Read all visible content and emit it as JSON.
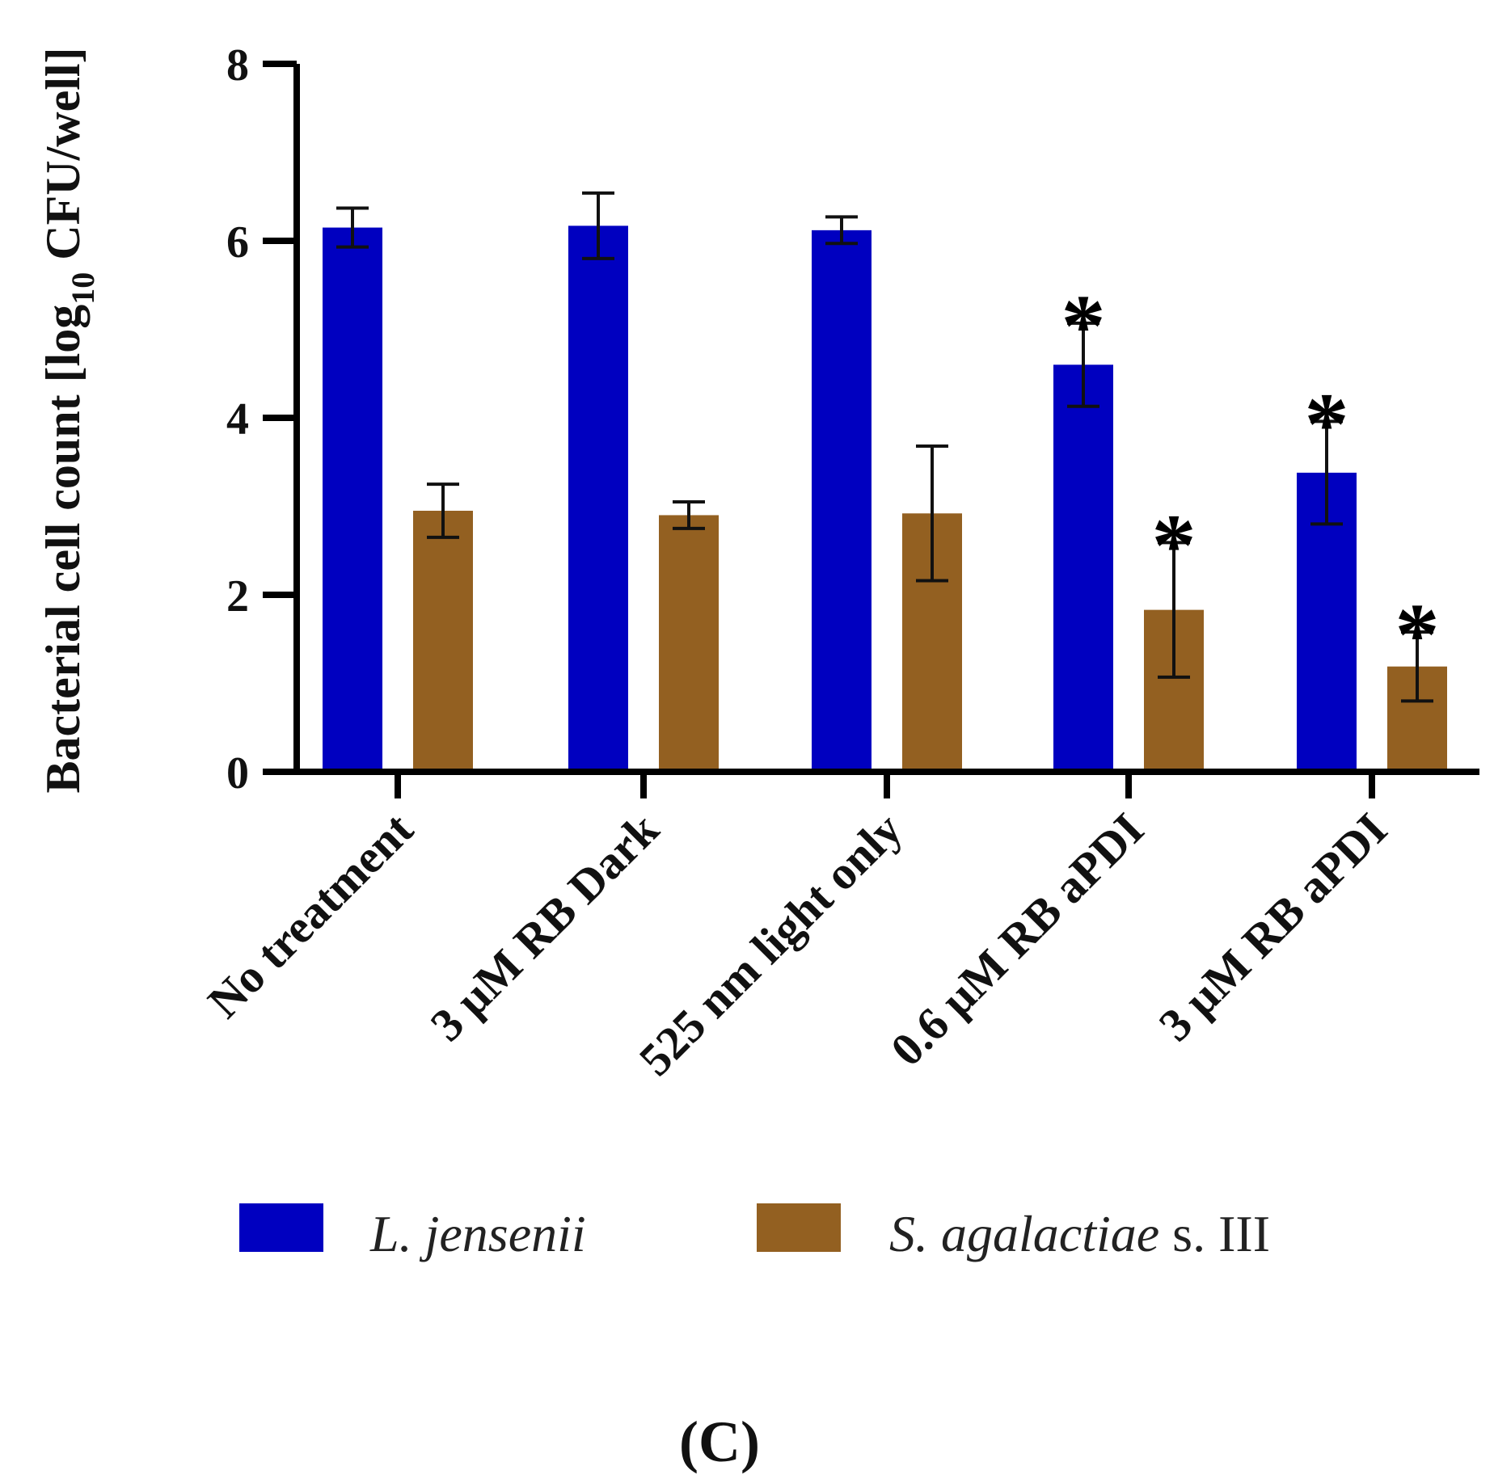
{
  "chart_data": {
    "type": "bar",
    "ylabel_main": "Bacterial cell count [log",
    "ylabel_sub": "10",
    "ylabel_end": " CFU/well]",
    "xlabel": "",
    "ylim": [
      0,
      8
    ],
    "yticks": [
      "0",
      "2",
      "4",
      "6",
      "8"
    ],
    "categories": [
      "No treatment",
      "3 μM RB Dark",
      "525 nm light only",
      "0.6 μM RB aPDI",
      "3 μM RB aPDI"
    ],
    "series": [
      {
        "name": "L. jensenii",
        "color": "#0000c0",
        "values": [
          6.15,
          6.17,
          6.12,
          4.6,
          3.38
        ],
        "errors": [
          0.22,
          0.37,
          0.15,
          0.47,
          0.58
        ],
        "significance": [
          "",
          "",
          "",
          "*",
          "*"
        ]
      },
      {
        "name": "S. agalactiae",
        "name_suffix": " s. III",
        "color": "#936021",
        "values": [
          2.95,
          2.9,
          2.92,
          1.83,
          1.19
        ],
        "errors": [
          0.3,
          0.15,
          0.76,
          0.76,
          0.39
        ],
        "significance": [
          "",
          "",
          "",
          "*",
          "*"
        ]
      }
    ],
    "panel_label": "(C)"
  }
}
